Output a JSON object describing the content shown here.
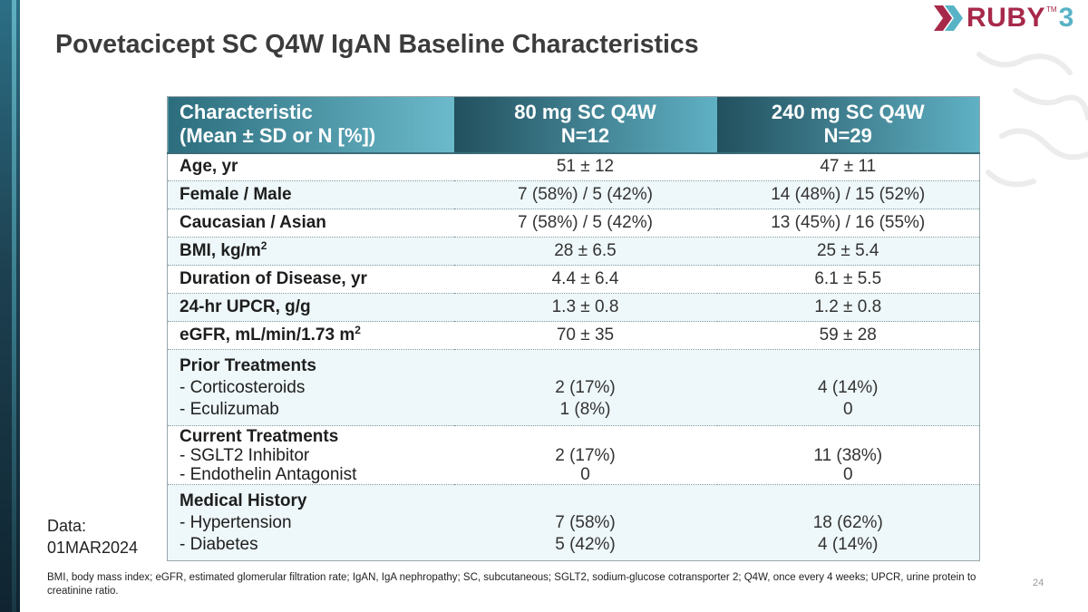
{
  "slide": {
    "title": "Povetacicept SC Q4W IgAN Baseline Characteristics",
    "page_number": "24",
    "data_note": [
      "Data:",
      "01MAR2024"
    ],
    "footnote": "BMI, body mass index; eGFR, estimated glomerular filtration rate; IgAN, IgA nephropathy; SC, subcutaneous; SGLT2, sodium-glucose cotransporter 2; Q4W, once every 4 weeks; UPCR, urine protein to creatinine ratio."
  },
  "logo": {
    "name": "RUBY",
    "number": "3",
    "tm": "TM"
  },
  "colors": {
    "header_teal": "#5fb1c4",
    "header_dark": "#22505e",
    "logo_red": "#a7294a",
    "row_tint": "#eef7f9"
  },
  "table": {
    "headers": {
      "characteristic": [
        "Characteristic",
        "(Mean ± SD or N [%])"
      ],
      "group1": [
        "80 mg SC Q4W",
        "N=12"
      ],
      "group2": [
        "240 mg SC Q4W",
        "N=29"
      ]
    },
    "rows": [
      {
        "label": "Age, yr",
        "g1": "51 ± 12",
        "g2": "47 ± 11"
      },
      {
        "label": "Female / Male",
        "g1": "7 (58%) / 5 (42%)",
        "g2": "14 (48%) / 15 (52%)"
      },
      {
        "label": "Caucasian / Asian",
        "g1": "7 (58%) / 5 (42%)",
        "g2": "13 (45%) / 16 (55%)"
      },
      {
        "label": "BMI, kg/m",
        "sup": "2",
        "g1": "28 ± 6.5",
        "g2": "25 ± 5.4"
      },
      {
        "label": "Duration of Disease, yr",
        "g1": "4.4 ± 6.4",
        "g2": "6.1 ± 5.5"
      },
      {
        "label": "24-hr UPCR, g/g",
        "g1": "1.3 ± 0.8",
        "g2": "1.2 ± 0.8"
      },
      {
        "label": "eGFR, mL/min/1.73 m",
        "sup": "2",
        "g1": "70 ± 35",
        "g2": "59 ± 28"
      }
    ],
    "prior_treatments": {
      "heading": "Prior Treatments",
      "items": [
        {
          "label": "- Corticosteroids",
          "g1": "2 (17%)",
          "g2": "4 (14%)"
        },
        {
          "label": "- Eculizumab",
          "g1": "1 (8%)",
          "g2": "0"
        }
      ]
    },
    "current_treatments": {
      "heading": "Current Treatments",
      "items": [
        {
          "label": "- SGLT2 Inhibitor",
          "g1": "2 (17%)",
          "g2": "11 (38%)"
        },
        {
          "label": "- Endothelin Antagonist",
          "g1": "0",
          "g2": "0"
        }
      ]
    },
    "medical_history": {
      "heading": "Medical History",
      "items": [
        {
          "label": "- Hypertension",
          "g1": "7 (58%)",
          "g2": "18 (62%)"
        },
        {
          "label": "- Diabetes",
          "g1": "5 (42%)",
          "g2": "4 (14%)"
        }
      ]
    }
  }
}
